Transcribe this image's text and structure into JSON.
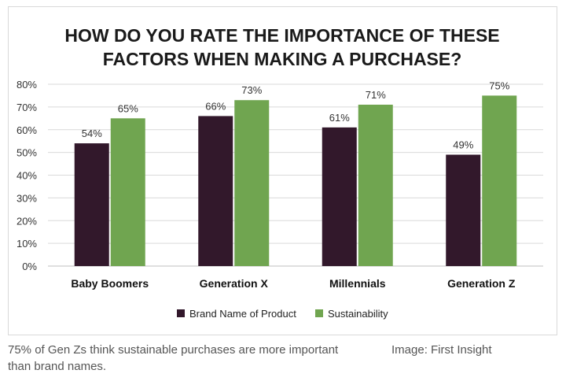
{
  "colors": {
    "series_brand": "#32182b",
    "series_sustainability": "#70a550"
  },
  "chart_data": {
    "type": "bar",
    "title_lines": [
      "HOW DO YOU RATE THE IMPORTANCE OF THESE",
      "FACTORS WHEN MAKING A PURCHASE?"
    ],
    "categories": [
      "Baby Boomers",
      "Generation X",
      "Millennials",
      "Generation Z"
    ],
    "series": [
      {
        "name": "Brand Name of Product",
        "values": [
          54,
          66,
          61,
          49
        ],
        "labels": [
          "54%",
          "66%",
          "61%",
          "49%"
        ]
      },
      {
        "name": "Sustainability",
        "values": [
          65,
          73,
          71,
          75
        ],
        "labels": [
          "65%",
          "73%",
          "71%",
          "75%"
        ]
      }
    ],
    "ylim": [
      0,
      80
    ],
    "yticks": [
      0,
      10,
      20,
      30,
      40,
      50,
      60,
      70,
      80
    ],
    "ytick_labels": [
      "0%",
      "10%",
      "20%",
      "30%",
      "40%",
      "50%",
      "60%",
      "70%",
      "80%"
    ],
    "grid": true,
    "legend_position": "bottom-center",
    "xlabel": "",
    "ylabel": ""
  },
  "caption": {
    "text": "75% of Gen Zs think sustainable purchases are more important than brand names.",
    "credit": "Image: First Insight"
  }
}
